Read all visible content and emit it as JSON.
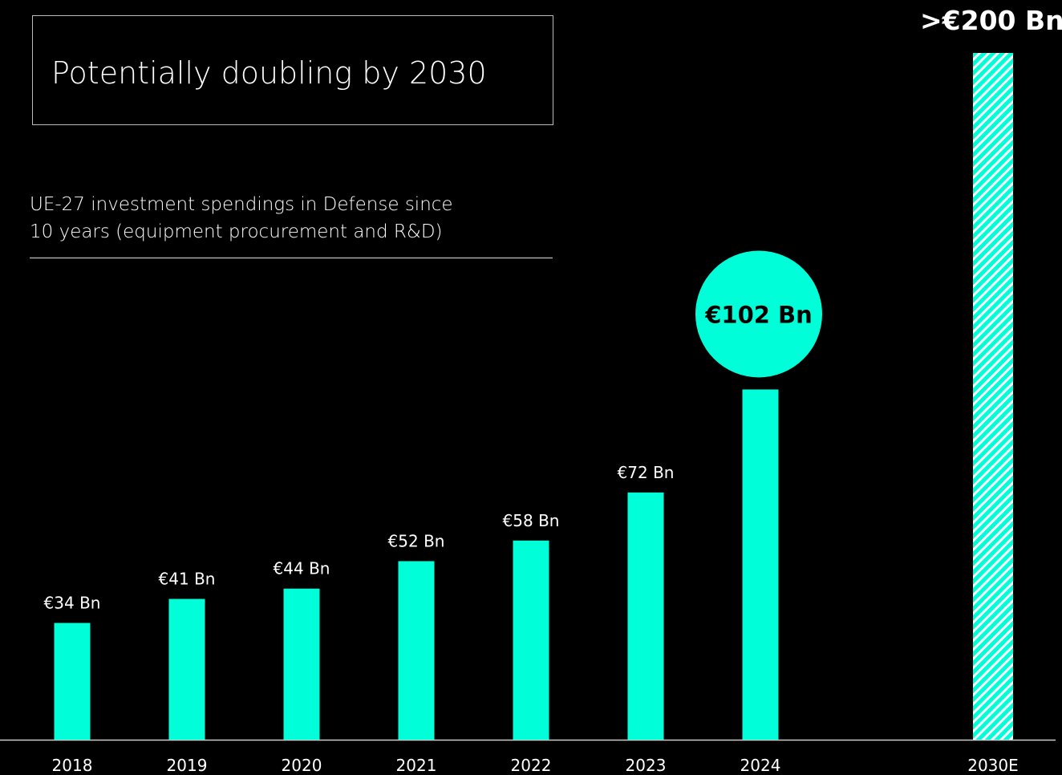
{
  "chart_data": {
    "type": "bar",
    "title": "Potentially doubling by 2030",
    "subtitle": [
      "UE-27 investment spendings in Defense since",
      "10 years (equipment procurement and R&D)"
    ],
    "categories": [
      "2018",
      "2019",
      "2020",
      "2021",
      "2022",
      "2023",
      "2024",
      "2030E"
    ],
    "values": [
      34,
      41,
      44,
      52,
      58,
      72,
      102,
      200
    ],
    "value_labels": [
      "€34 Bn",
      "€41 Bn",
      "€44 Bn",
      "€52 Bn",
      "€58 Bn",
      "€72 Bn",
      "€102 Bn",
      ">€200 Bn"
    ],
    "color": "#00ffd9",
    "hatched": [
      false,
      false,
      false,
      false,
      false,
      false,
      false,
      true
    ],
    "highlighted": [
      false,
      false,
      false,
      false,
      false,
      false,
      true,
      false
    ]
  }
}
